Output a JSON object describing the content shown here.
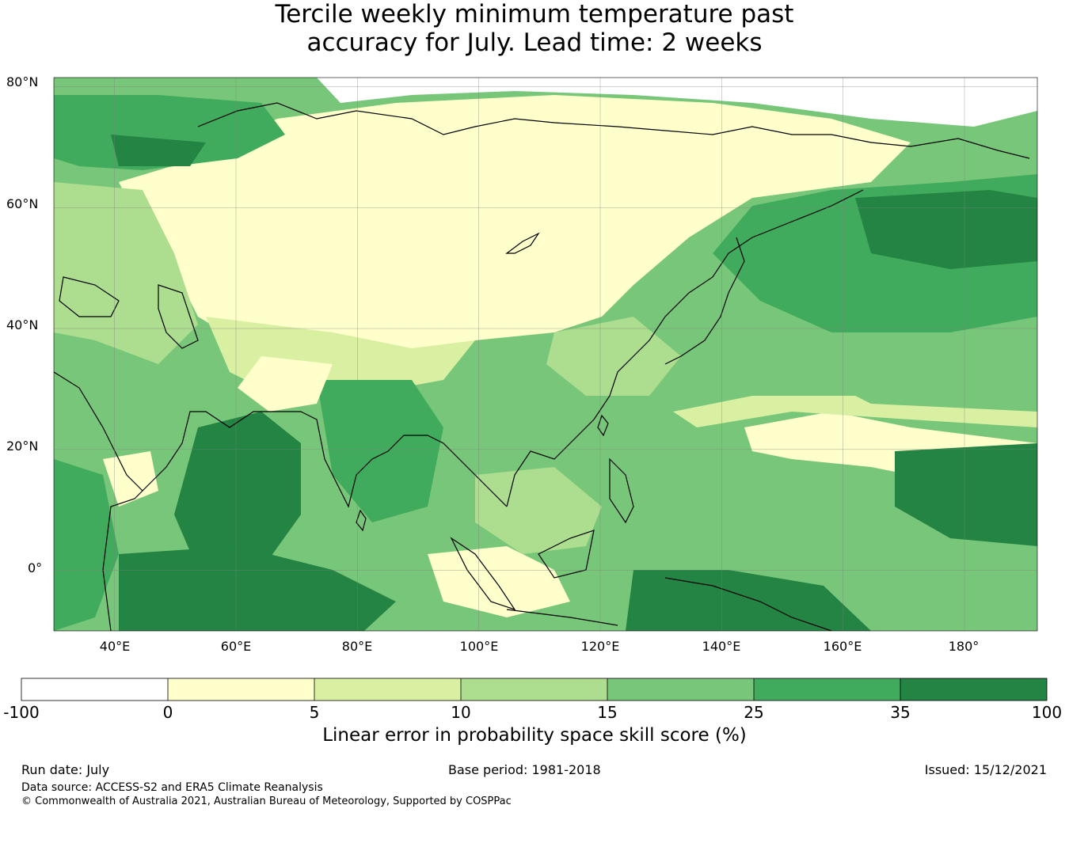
{
  "title": {
    "line1": "Tercile weekly minimum temperature past",
    "line2": "accuracy for July. Lead time: 2 weeks"
  },
  "map": {
    "lon_range": [
      30,
      192
    ],
    "lat_range": [
      -10,
      81.5
    ],
    "lat_ticks": [
      "80°N",
      "60°N",
      "40°N",
      "20°N",
      "0°"
    ],
    "lon_ticks": [
      "40°E",
      "60°E",
      "80°E",
      "100°E",
      "120°E",
      "140°E",
      "160°E",
      "180°"
    ]
  },
  "colorbar": {
    "title": "Linear error in probability space skill score (%)",
    "bounds": [
      "-100",
      "0",
      "5",
      "10",
      "15",
      "25",
      "35",
      "100"
    ],
    "colors": [
      "#ffffff",
      "#ffffcc",
      "#d9f0a3",
      "#addd8e",
      "#78c679",
      "#41ab5d",
      "#238443"
    ]
  },
  "footer": {
    "run_date": "Run date: July",
    "base_period": "Base period: 1981-2018",
    "issued": "Issued: 15/12/2021",
    "data_source": "Data source: ACCESS-S2 and ERA5 Climate Reanalysis",
    "copyright": "© Commonwealth of Australia 2021, Australian Bureau of Meteorology, Supported by COSPPac"
  }
}
